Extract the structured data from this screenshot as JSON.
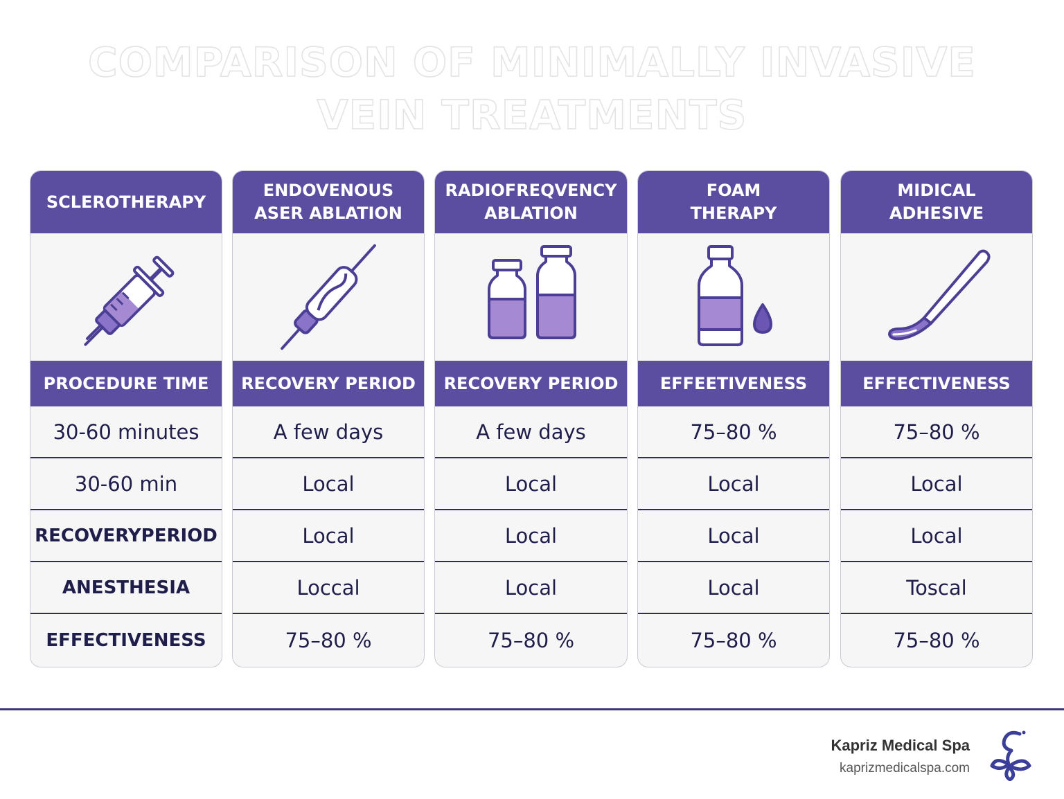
{
  "title": {
    "line1": "COMPARISON OF MINIMALLY INVASIVE",
    "line2": "VEIN TREATMENTS"
  },
  "colors": {
    "primary": "#5b4da0",
    "accent": "#a58ad3",
    "text": "#1f1d4a",
    "card_bg": "#f6f6f7"
  },
  "columns": [
    {
      "header": [
        "SCLEROTHERAPY"
      ],
      "icon": "syringe-icon",
      "metric": "PROCEDURE TIME",
      "rows": [
        "30-60 minutes",
        "30-60 min",
        "RECOVERYPERIOD",
        "ANESTHESIA",
        "EFFECTIVENESS"
      ]
    },
    {
      "header": [
        "ENDOVENOUS",
        "ASER ABLATION"
      ],
      "icon": "laser-fiber-icon",
      "metric": "RECOVERY PERIOD",
      "rows": [
        "A few days",
        "Local",
        "Local",
        "Loccal",
        "75–80 %"
      ]
    },
    {
      "header": [
        "RADIOFREQVENCY",
        "ABLATION"
      ],
      "icon": "vials-icon",
      "metric": "RECOVERY PERIOD",
      "rows": [
        "A few days",
        "Local",
        "Local",
        "Local",
        "75–80 %"
      ]
    },
    {
      "header": [
        "FOAM",
        "THERAPY"
      ],
      "icon": "bottle-drop-icon",
      "metric": "EFFEETIVENESS",
      "rows": [
        "75–80 %",
        "Local",
        "Local",
        "Local",
        "75–80 %"
      ]
    },
    {
      "header": [
        "MIDICAL",
        "ADHESIVE"
      ],
      "icon": "applicator-icon",
      "metric": "EFFECTIVENESS",
      "rows": [
        "75–80 %",
        "Local",
        "Local",
        "Toscal",
        "75–80 %"
      ]
    }
  ],
  "footer": {
    "brand_name": "Kapriz Medical Spa",
    "brand_url": "kaprizmedicalspa.com",
    "logo_icon": "kapriz-flower-logo-icon"
  }
}
